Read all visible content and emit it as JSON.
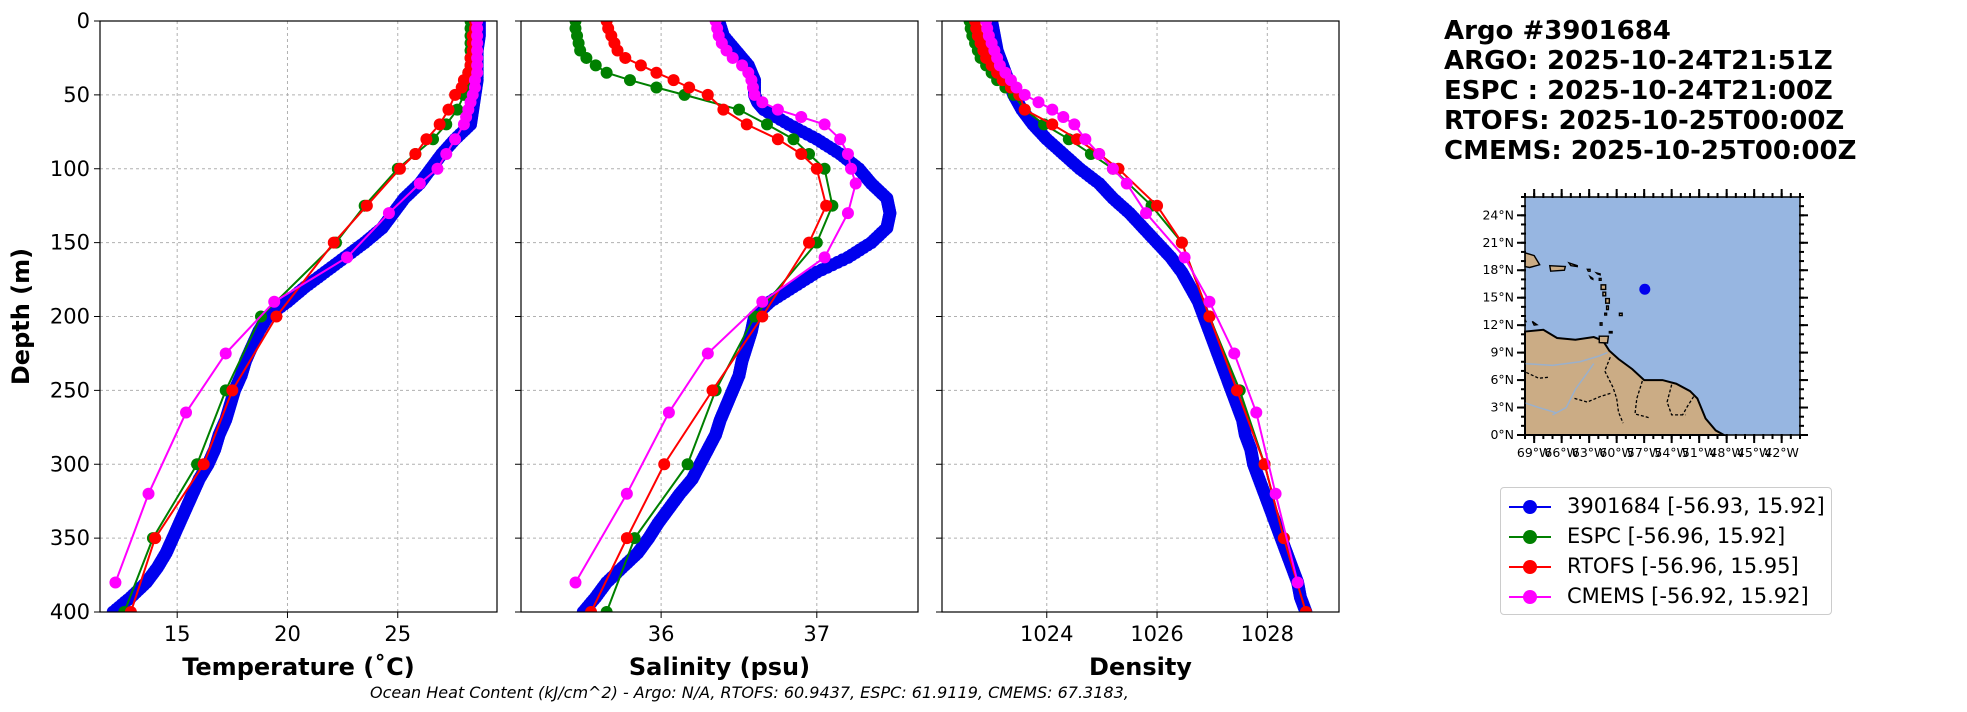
{
  "title": {
    "line1": "Argo #3901684",
    "line2": "ARGO: 2025-10-24T21:51Z",
    "line3": "ESPC : 2025-10-24T21:00Z",
    "line4": "RTOFS: 2025-10-25T00:00Z",
    "line5": "CMEMS: 2025-10-25T00:00Z"
  },
  "colors": {
    "argo": "#0000ee",
    "espc": "#008000",
    "rtofs": "#ff0000",
    "cmems": "#ff00ff",
    "ocean": "#97b6e1",
    "land": "#cbac85"
  },
  "legend": [
    {
      "label": "3901684 [-56.93, 15.92]",
      "color": "#0000ee"
    },
    {
      "label": "ESPC [-56.96, 15.92]",
      "color": "#008000"
    },
    {
      "label": "RTOFS [-56.96, 15.95]",
      "color": "#ff0000"
    },
    {
      "label": "CMEMS [-56.92, 15.92]",
      "color": "#ff00ff"
    }
  ],
  "ohc_text": "Ocean Heat Content (kJ/cm^2) - Argo: N/A,  RTOFS: 60.9437,  ESPC: 61.9119,  CMEMS: 67.3183,",
  "chart_data": [
    {
      "type": "line",
      "id": "temperature",
      "xlabel": "Temperature (˚C)",
      "ylabel": "Depth (m)",
      "xlim": [
        11.5,
        29.5
      ],
      "ylim": [
        400,
        0
      ],
      "xticks": [
        15,
        20,
        25
      ],
      "yticks": [
        0,
        50,
        100,
        150,
        200,
        250,
        300,
        350,
        400
      ],
      "grid": true,
      "series": [
        {
          "name": "3901684",
          "key": "argo",
          "dense": true,
          "depth": [
            0,
            10,
            20,
            30,
            40,
            50,
            60,
            70,
            80,
            90,
            100,
            110,
            120,
            130,
            140,
            150,
            160,
            170,
            180,
            190,
            200,
            210,
            220,
            230,
            240,
            250,
            260,
            270,
            280,
            290,
            300,
            310,
            320,
            330,
            340,
            350,
            360,
            370,
            380,
            390,
            400
          ],
          "values": [
            28.7,
            28.7,
            28.6,
            28.6,
            28.6,
            28.5,
            28.4,
            28.3,
            27.6,
            27.0,
            26.5,
            26.0,
            25.3,
            24.8,
            24.3,
            23.5,
            22.6,
            21.7,
            20.8,
            20.0,
            19.1,
            18.7,
            18.4,
            18.1,
            17.9,
            17.6,
            17.4,
            17.2,
            16.9,
            16.7,
            16.4,
            16.0,
            15.7,
            15.4,
            15.1,
            14.8,
            14.5,
            14.1,
            13.6,
            12.9,
            12.1
          ]
        },
        {
          "name": "ESPC",
          "key": "espc",
          "depth": [
            0,
            5,
            10,
            15,
            20,
            25,
            30,
            35,
            40,
            45,
            50,
            60,
            70,
            80,
            90,
            100,
            125,
            150,
            200,
            250,
            300,
            350,
            400
          ],
          "values": [
            28.3,
            28.3,
            28.3,
            28.3,
            28.3,
            28.3,
            28.3,
            28.2,
            28.2,
            28.1,
            28.0,
            27.7,
            27.2,
            26.6,
            25.8,
            25.0,
            23.5,
            22.2,
            18.8,
            17.2,
            15.9,
            13.9,
            12.6
          ]
        },
        {
          "name": "RTOFS",
          "key": "rtofs",
          "depth": [
            0,
            5,
            10,
            15,
            20,
            25,
            30,
            35,
            40,
            45,
            50,
            60,
            70,
            80,
            90,
            100,
            125,
            150,
            200,
            250,
            300,
            350,
            400
          ],
          "values": [
            28.5,
            28.5,
            28.4,
            28.4,
            28.4,
            28.3,
            28.3,
            28.2,
            28.0,
            27.9,
            27.6,
            27.3,
            26.9,
            26.3,
            25.8,
            25.1,
            23.6,
            22.1,
            19.5,
            17.5,
            16.2,
            14.0,
            12.9
          ]
        },
        {
          "name": "CMEMS",
          "key": "cmems",
          "depth": [
            0,
            5,
            10,
            15,
            20,
            25,
            30,
            35,
            40,
            45,
            50,
            55,
            60,
            65,
            70,
            80,
            90,
            100,
            110,
            130,
            160,
            190,
            225,
            265,
            320,
            380
          ],
          "values": [
            28.6,
            28.6,
            28.6,
            28.6,
            28.6,
            28.6,
            28.6,
            28.6,
            28.5,
            28.5,
            28.4,
            28.3,
            28.2,
            28.1,
            28.0,
            27.6,
            27.2,
            26.8,
            26.0,
            24.6,
            22.7,
            19.4,
            17.2,
            15.4,
            13.7,
            12.2
          ]
        }
      ]
    },
    {
      "type": "line",
      "id": "salinity",
      "xlabel": "Salinity (psu)",
      "xlim": [
        35.1,
        37.65
      ],
      "ylim": [
        400,
        0
      ],
      "xticks": [
        36,
        37
      ],
      "yticks": [
        0,
        50,
        100,
        150,
        200,
        250,
        300,
        350,
        400
      ],
      "grid": true,
      "series": [
        {
          "name": "3901684",
          "key": "argo",
          "dense": true,
          "depth": [
            0,
            10,
            20,
            30,
            40,
            50,
            55,
            60,
            70,
            80,
            90,
            100,
            110,
            120,
            130,
            140,
            150,
            160,
            170,
            180,
            190,
            200,
            210,
            220,
            230,
            240,
            250,
            260,
            270,
            280,
            290,
            300,
            310,
            320,
            330,
            340,
            350,
            360,
            370,
            380,
            390,
            400
          ],
          "values": [
            36.37,
            36.4,
            36.48,
            36.56,
            36.6,
            36.6,
            36.62,
            36.66,
            36.82,
            37.0,
            37.15,
            37.27,
            37.35,
            37.45,
            37.47,
            37.45,
            37.35,
            37.2,
            37.0,
            36.85,
            36.7,
            36.6,
            36.58,
            36.55,
            36.52,
            36.5,
            36.46,
            36.42,
            36.38,
            36.35,
            36.3,
            36.25,
            36.2,
            36.12,
            36.05,
            35.98,
            35.92,
            35.85,
            35.75,
            35.65,
            35.58,
            35.5
          ]
        },
        {
          "name": "ESPC",
          "key": "espc",
          "depth": [
            0,
            5,
            10,
            15,
            20,
            25,
            30,
            35,
            40,
            45,
            50,
            60,
            70,
            80,
            90,
            100,
            125,
            150,
            200,
            250,
            300,
            350,
            400
          ],
          "values": [
            35.45,
            35.45,
            35.46,
            35.47,
            35.48,
            35.52,
            35.58,
            35.65,
            35.8,
            35.97,
            36.15,
            36.5,
            36.68,
            36.85,
            36.95,
            37.05,
            37.1,
            37.0,
            36.6,
            36.35,
            36.17,
            35.83,
            35.65
          ]
        },
        {
          "name": "RTOFS",
          "key": "rtofs",
          "depth": [
            0,
            5,
            10,
            15,
            20,
            25,
            30,
            35,
            40,
            45,
            50,
            60,
            70,
            80,
            90,
            100,
            125,
            150,
            200,
            250,
            300,
            350,
            400
          ],
          "values": [
            35.65,
            35.66,
            35.68,
            35.7,
            35.72,
            35.77,
            35.87,
            35.97,
            36.08,
            36.18,
            36.3,
            36.4,
            36.55,
            36.75,
            36.9,
            37.0,
            37.06,
            36.95,
            36.65,
            36.33,
            36.02,
            35.78,
            35.55
          ]
        },
        {
          "name": "CMEMS",
          "key": "cmems",
          "depth": [
            0,
            5,
            10,
            15,
            20,
            25,
            30,
            35,
            40,
            45,
            50,
            55,
            60,
            65,
            70,
            80,
            90,
            100,
            110,
            130,
            160,
            190,
            225,
            265,
            320,
            380
          ],
          "values": [
            36.35,
            36.36,
            36.37,
            36.39,
            36.42,
            36.46,
            36.52,
            36.56,
            36.58,
            36.59,
            36.6,
            36.65,
            36.75,
            36.9,
            37.05,
            37.15,
            37.2,
            37.22,
            37.25,
            37.2,
            37.05,
            36.65,
            36.3,
            36.05,
            35.78,
            35.45
          ]
        }
      ]
    },
    {
      "type": "line",
      "id": "density",
      "xlabel": "Density",
      "xlim": [
        1022.1,
        1029.3
      ],
      "ylim": [
        400,
        0
      ],
      "xticks": [
        1024,
        1026,
        1028
      ],
      "yticks": [
        0,
        50,
        100,
        150,
        200,
        250,
        300,
        350,
        400
      ],
      "grid": true,
      "series": [
        {
          "name": "3901684",
          "key": "argo",
          "dense": true,
          "depth": [
            0,
            10,
            20,
            30,
            40,
            50,
            60,
            70,
            80,
            90,
            100,
            110,
            120,
            130,
            140,
            150,
            160,
            170,
            180,
            190,
            200,
            210,
            220,
            230,
            240,
            250,
            260,
            270,
            280,
            290,
            300,
            310,
            320,
            330,
            340,
            350,
            360,
            370,
            380,
            390,
            400
          ],
          "values": [
            1023.0,
            1023.05,
            1023.1,
            1023.2,
            1023.3,
            1023.4,
            1023.55,
            1023.75,
            1024.0,
            1024.3,
            1024.6,
            1024.95,
            1025.2,
            1025.5,
            1025.75,
            1026.0,
            1026.25,
            1026.45,
            1026.6,
            1026.75,
            1026.85,
            1026.95,
            1027.05,
            1027.15,
            1027.25,
            1027.35,
            1027.45,
            1027.55,
            1027.6,
            1027.7,
            1027.75,
            1027.85,
            1027.95,
            1028.05,
            1028.15,
            1028.25,
            1028.35,
            1028.45,
            1028.55,
            1028.6,
            1028.7
          ]
        },
        {
          "name": "ESPC",
          "key": "espc",
          "depth": [
            0,
            5,
            10,
            15,
            20,
            25,
            30,
            35,
            40,
            45,
            50,
            60,
            70,
            80,
            90,
            100,
            125,
            150,
            200,
            250,
            300,
            350,
            400
          ],
          "values": [
            1022.6,
            1022.62,
            1022.65,
            1022.7,
            1022.75,
            1022.8,
            1022.9,
            1023.0,
            1023.1,
            1023.25,
            1023.4,
            1023.6,
            1023.95,
            1024.4,
            1024.8,
            1025.2,
            1025.9,
            1026.45,
            1026.95,
            1027.5,
            1027.95,
            1028.3,
            1028.7
          ]
        },
        {
          "name": "RTOFS",
          "key": "rtofs",
          "depth": [
            0,
            5,
            10,
            15,
            20,
            25,
            30,
            35,
            40,
            45,
            50,
            60,
            70,
            80,
            90,
            100,
            125,
            150,
            200,
            250,
            300,
            350,
            400
          ],
          "values": [
            1022.7,
            1022.72,
            1022.75,
            1022.8,
            1022.85,
            1022.9,
            1023.0,
            1023.1,
            1023.2,
            1023.35,
            1023.5,
            1023.6,
            1024.1,
            1024.55,
            1024.95,
            1025.3,
            1026.0,
            1026.45,
            1026.95,
            1027.45,
            1027.95,
            1028.3,
            1028.7
          ]
        },
        {
          "name": "CMEMS",
          "key": "cmems",
          "depth": [
            0,
            5,
            10,
            15,
            20,
            25,
            30,
            35,
            40,
            45,
            50,
            55,
            60,
            65,
            70,
            80,
            90,
            100,
            110,
            130,
            160,
            190,
            225,
            265,
            320,
            380
          ],
          "values": [
            1022.9,
            1022.92,
            1022.95,
            1023.0,
            1023.05,
            1023.1,
            1023.15,
            1023.25,
            1023.35,
            1023.45,
            1023.6,
            1023.85,
            1024.1,
            1024.3,
            1024.5,
            1024.7,
            1024.95,
            1025.2,
            1025.45,
            1025.8,
            1026.5,
            1026.95,
            1027.4,
            1027.8,
            1028.15,
            1028.55
          ]
        }
      ]
    },
    {
      "type": "map",
      "id": "location-map",
      "lon_range": [
        -70,
        -40
      ],
      "lat_range": [
        0,
        26
      ],
      "xtick_labels": [
        "69°W",
        "66°W",
        "63°W",
        "60°W",
        "57°W",
        "54°W",
        "51°W",
        "48°W",
        "45°W",
        "42°W"
      ],
      "xtick_values": [
        -69,
        -66,
        -63,
        -60,
        -57,
        -54,
        -51,
        -48,
        -45,
        -42
      ],
      "ytick_labels": [
        "0°N",
        "3°N",
        "6°N",
        "9°N",
        "12°N",
        "15°N",
        "18°N",
        "21°N",
        "24°N"
      ],
      "ytick_values": [
        0,
        3,
        6,
        9,
        12,
        15,
        18,
        21,
        24
      ],
      "float_position": {
        "lon": -56.93,
        "lat": 15.92
      }
    }
  ]
}
